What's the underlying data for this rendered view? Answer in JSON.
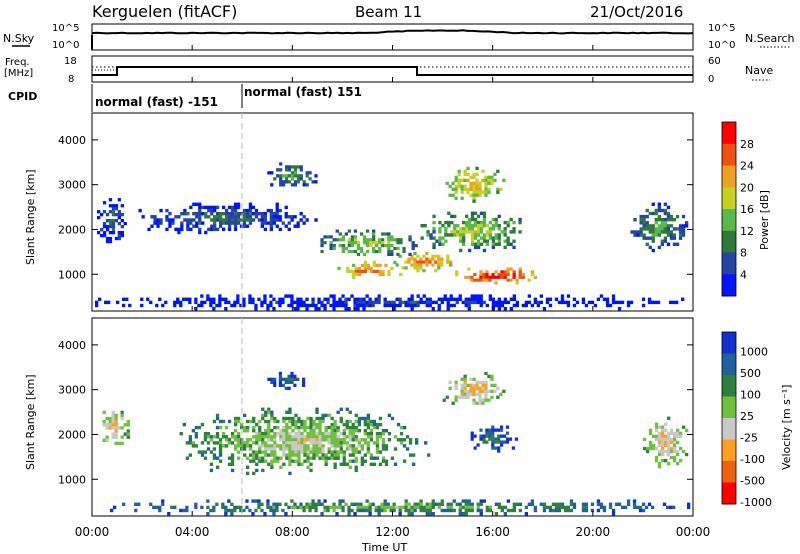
{
  "header": {
    "station": "Kerguelen (fitACF)",
    "beam": "Beam 11",
    "date": "21/Oct/2016"
  },
  "noise_panel": {
    "left_label": "N.Sky",
    "right_label": "N.Search",
    "ticks": [
      "10^5",
      "10^0"
    ],
    "right_ticks": [
      "10^5",
      "10^0"
    ]
  },
  "freq_panel": {
    "left_label_1": "Freq.",
    "left_label_2": "[MHz]",
    "left_ticks": [
      "18",
      "8"
    ],
    "right_label": "Nave",
    "right_ticks": [
      "60",
      "0"
    ]
  },
  "cpid": {
    "label": "CPID",
    "segments": [
      "normal (fast) -151",
      "normal (fast) 151"
    ]
  },
  "x_axis": {
    "label": "Time UT",
    "ticks": [
      "00:00",
      "04:00",
      "08:00",
      "12:00",
      "16:00",
      "20:00",
      "00:00"
    ]
  },
  "power_panel": {
    "ylabel": "Slant Range [km]",
    "yticks": [
      "4000",
      "3000",
      "2000",
      "1000"
    ],
    "colorbar_label": "Power [dB]",
    "colorbar_ticks": [
      "28",
      "24",
      "20",
      "16",
      "12",
      "8",
      "4"
    ],
    "colors": [
      "#0015ff",
      "#2444a8",
      "#2e7a3a",
      "#58b848",
      "#c8d020",
      "#f0a020",
      "#f05010",
      "#ff0000"
    ]
  },
  "velocity_panel": {
    "ylabel": "Slant Range [km]",
    "yticks": [
      "4000",
      "3000",
      "2000",
      "1000"
    ],
    "colorbar_label": "Velocity [m s⁻¹]",
    "colorbar_ticks": [
      "1000",
      "500",
      "100",
      "25",
      "-25",
      "-100",
      "-500",
      "-1000"
    ],
    "colors": [
      "#1030d0",
      "#2060a0",
      "#2e8040",
      "#70c040",
      "#c8c8c8",
      "#ffa020",
      "#f06010",
      "#ff0000"
    ]
  },
  "chart_data": {
    "type": "heatmap",
    "x_range_hours": [
      0,
      24
    ],
    "y_range_km": [
      180,
      4600
    ],
    "power_regions": [
      {
        "t0": 9.8,
        "t1": 12.5,
        "r0": 900,
        "r1": 1300,
        "level": 7
      },
      {
        "t0": 12.0,
        "t1": 14.5,
        "r0": 1050,
        "r1": 1500,
        "level": 7
      },
      {
        "t0": 14.5,
        "t1": 18.0,
        "r0": 780,
        "r1": 1150,
        "level": 8
      },
      {
        "t0": 9.0,
        "t1": 13.0,
        "r0": 1350,
        "r1": 2000,
        "level": 5
      },
      {
        "t0": 13.0,
        "t1": 17.5,
        "r0": 1500,
        "r1": 2400,
        "level": 5
      },
      {
        "t0": 14.0,
        "t1": 16.5,
        "r0": 2600,
        "r1": 3400,
        "level": 6
      },
      {
        "t0": 0.2,
        "t1": 1.5,
        "r0": 1700,
        "r1": 2700,
        "level": 3
      },
      {
        "t0": 1.5,
        "t1": 9.0,
        "r0": 1900,
        "r1": 2600,
        "level": 3
      },
      {
        "t0": 7.0,
        "t1": 9.0,
        "r0": 2900,
        "r1": 3500,
        "level": 4
      },
      {
        "t0": 21.5,
        "t1": 23.8,
        "r0": 1500,
        "r1": 2600,
        "level": 4
      },
      {
        "t0": 0.0,
        "t1": 24.0,
        "r0": 200,
        "r1": 550,
        "level": 2
      }
    ],
    "velocity_regions": [
      {
        "t0": 3.5,
        "t1": 13.5,
        "r0": 1100,
        "r1": 2600,
        "level": 5
      },
      {
        "t0": 0.3,
        "t1": 1.5,
        "r0": 1700,
        "r1": 2600,
        "level": 6
      },
      {
        "t0": 14.0,
        "t1": 16.5,
        "r0": 2600,
        "r1": 3400,
        "level": 6
      },
      {
        "t0": 15.0,
        "t1": 17.0,
        "r0": 1600,
        "r1": 2200,
        "level": 3
      },
      {
        "t0": 7.0,
        "t1": 8.5,
        "r0": 3000,
        "r1": 3400,
        "level": 3
      },
      {
        "t0": 22.0,
        "t1": 23.8,
        "r0": 1250,
        "r1": 2400,
        "level": 6
      },
      {
        "t0": 0.0,
        "t1": 24.0,
        "r0": 200,
        "r1": 550,
        "level": 4
      }
    ]
  }
}
